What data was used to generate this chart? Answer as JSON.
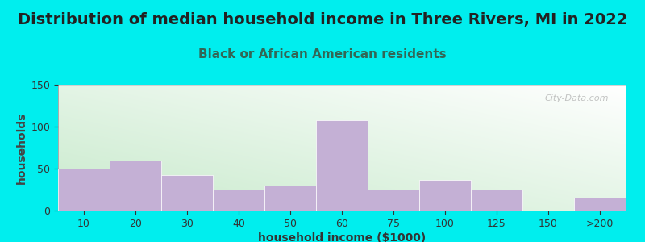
{
  "title": "Distribution of median household income in Three Rivers, MI in 2022",
  "subtitle": "Black or African American residents",
  "xlabel": "household income ($1000)",
  "ylabel": "households",
  "background_outer": "#00EEEE",
  "bar_color": "#C4B0D5",
  "bar_edgecolor": "#C4B0D5",
  "categories": [
    "10",
    "20",
    "30",
    "40",
    "50",
    "60",
    "75",
    "100",
    "125",
    "150",
    ">200"
  ],
  "values": [
    50,
    60,
    42,
    25,
    30,
    108,
    25,
    37,
    25,
    0,
    15
  ],
  "ylim": [
    0,
    150
  ],
  "yticks": [
    0,
    50,
    100,
    150
  ],
  "title_fontsize": 14,
  "subtitle_fontsize": 11,
  "axis_label_fontsize": 10,
  "tick_fontsize": 9,
  "watermark": "City-Data.com",
  "gradient_left": "#c8eacc",
  "gradient_right": "#f0f8f0"
}
